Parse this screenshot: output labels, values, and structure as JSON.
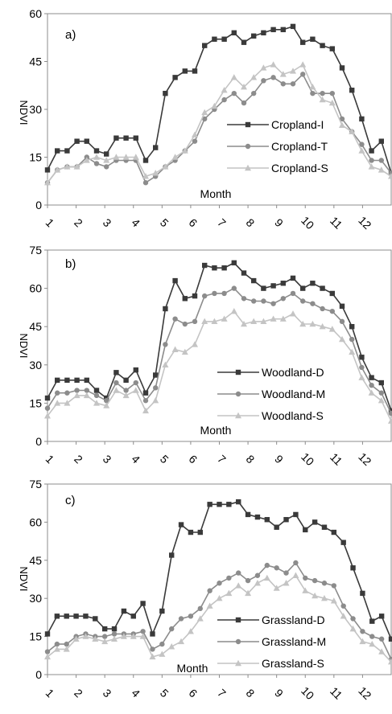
{
  "chart_data": [
    {
      "type": "line",
      "panel_label": "a)",
      "ylabel": "NDVI",
      "xlabel": "Month",
      "ylim": [
        0,
        60
      ],
      "yticks": [
        "0",
        "15",
        "30",
        "45",
        "60"
      ],
      "xlim": [
        1,
        13
      ],
      "xticks": [
        "1",
        "2",
        "3",
        "4",
        "5",
        "6",
        "7",
        "8",
        "9",
        "10",
        "11",
        "12"
      ],
      "grid": false,
      "legend_position": "center-right",
      "series": [
        {
          "name": "Cropland-I",
          "color": "#3a3a3a",
          "marker": "square",
          "values": [
            11,
            17,
            17,
            20,
            20,
            17,
            16,
            21,
            21,
            21,
            14,
            18,
            35,
            40,
            42,
            42,
            50,
            52,
            52,
            54,
            51,
            53,
            54,
            55,
            55,
            56,
            51,
            52,
            50,
            49,
            43,
            36,
            27,
            17,
            20,
            10
          ]
        },
        {
          "name": "Cropland-T",
          "color": "#8c8c8c",
          "marker": "circle",
          "values": [
            7,
            11,
            12,
            12,
            15,
            13,
            12,
            14,
            14,
            14,
            7,
            9,
            12,
            14,
            17,
            20,
            27,
            30,
            33,
            35,
            32,
            35,
            39,
            40,
            38,
            38,
            41,
            35,
            35,
            35,
            27,
            23,
            19,
            14,
            14,
            10
          ]
        },
        {
          "name": "Cropland-S",
          "color": "#c4c4c4",
          "marker": "triangle",
          "values": [
            7,
            11,
            12,
            12,
            14,
            15,
            14,
            15,
            15,
            15,
            9,
            10,
            12,
            15,
            17,
            22,
            29,
            31,
            36,
            40,
            37,
            40,
            43,
            44,
            41,
            42,
            44,
            37,
            33,
            32,
            25,
            23,
            17,
            12,
            11,
            9
          ]
        }
      ]
    },
    {
      "type": "line",
      "panel_label": "b)",
      "ylabel": "NDVI",
      "xlabel": "Month",
      "ylim": [
        0,
        75
      ],
      "yticks": [
        "0",
        "15",
        "30",
        "45",
        "60",
        "75"
      ],
      "xlim": [
        1,
        13
      ],
      "xticks": [
        "1",
        "2",
        "3",
        "4",
        "5",
        "6",
        "7",
        "8",
        "9",
        "10",
        "11",
        "12"
      ],
      "grid": false,
      "legend_position": "lower-right",
      "series": [
        {
          "name": "Woodland-D",
          "color": "#3a3a3a",
          "marker": "square",
          "values": [
            17,
            24,
            24,
            24,
            24,
            20,
            17,
            27,
            24,
            28,
            19,
            26,
            52,
            63,
            56,
            57,
            69,
            68,
            68,
            70,
            66,
            63,
            60,
            61,
            62,
            64,
            60,
            62,
            60,
            58,
            53,
            45,
            33,
            25,
            23,
            12
          ]
        },
        {
          "name": "Woodland-M",
          "color": "#8c8c8c",
          "marker": "circle",
          "values": [
            13,
            19,
            19,
            20,
            20,
            18,
            16,
            23,
            20,
            23,
            16,
            21,
            38,
            48,
            46,
            47,
            57,
            58,
            58,
            60,
            56,
            55,
            55,
            54,
            56,
            58,
            55,
            54,
            52,
            51,
            47,
            40,
            29,
            22,
            19,
            11
          ]
        },
        {
          "name": "Woodland-S",
          "color": "#c4c4c4",
          "marker": "triangle",
          "values": [
            10,
            15,
            15,
            18,
            18,
            15,
            14,
            20,
            18,
            20,
            12,
            16,
            30,
            36,
            35,
            38,
            47,
            47,
            48,
            51,
            46,
            47,
            47,
            48,
            48,
            50,
            46,
            46,
            45,
            44,
            40,
            35,
            25,
            19,
            16,
            8
          ]
        }
      ]
    },
    {
      "type": "line",
      "panel_label": "c)",
      "ylabel": "NDVI",
      "xlabel": "Month",
      "ylim": [
        0,
        75
      ],
      "yticks": [
        "0",
        "15",
        "30",
        "45",
        "60",
        "75"
      ],
      "xlim": [
        1,
        13
      ],
      "xticks": [
        "1",
        "2",
        "3",
        "4",
        "5",
        "6",
        "7",
        "8",
        "9",
        "10",
        "11",
        "12"
      ],
      "grid": false,
      "legend_position": "lower-right",
      "series": [
        {
          "name": "Grassland-D",
          "color": "#3a3a3a",
          "marker": "square",
          "values": [
            16,
            23,
            23,
            23,
            23,
            22,
            18,
            18,
            25,
            23,
            28,
            16,
            25,
            47,
            59,
            56,
            56,
            67,
            67,
            67,
            68,
            63,
            62,
            61,
            58,
            61,
            63,
            57,
            60,
            58,
            56,
            52,
            42,
            32,
            21,
            23,
            14
          ]
        },
        {
          "name": "Grassland-M",
          "color": "#8c8c8c",
          "marker": "circle",
          "values": [
            9,
            12,
            12,
            15,
            16,
            15,
            15,
            16,
            16,
            16,
            17,
            10,
            12,
            18,
            22,
            23,
            26,
            33,
            36,
            38,
            40,
            37,
            39,
            43,
            42,
            40,
            44,
            38,
            37,
            36,
            35,
            27,
            22,
            17,
            15,
            14,
            6
          ]
        },
        {
          "name": "Grassland-S",
          "color": "#c4c4c4",
          "marker": "triangle",
          "values": [
            7,
            10,
            10,
            14,
            15,
            14,
            13,
            14,
            15,
            15,
            15,
            7,
            8,
            11,
            13,
            17,
            22,
            27,
            30,
            32,
            35,
            32,
            36,
            38,
            34,
            36,
            39,
            33,
            31,
            30,
            29,
            23,
            18,
            13,
            12,
            9,
            5
          ]
        }
      ]
    }
  ]
}
